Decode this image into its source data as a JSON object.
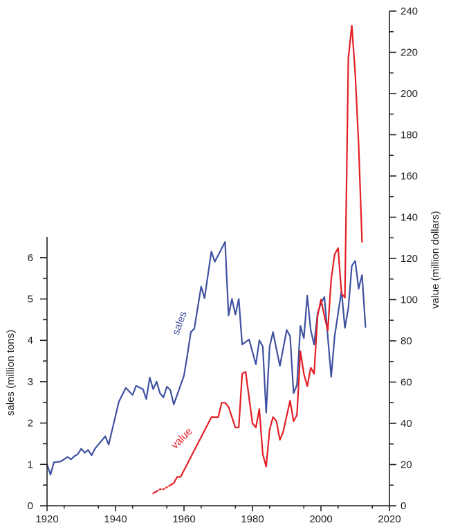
{
  "chart_data": {
    "type": "line",
    "x_axis": {
      "label": "",
      "range": [
        1920,
        2020
      ],
      "ticks": [
        1920,
        1940,
        1960,
        1980,
        2000,
        2020
      ]
    },
    "y_left": {
      "label": "sales (million tons)",
      "range": [
        0,
        6.5
      ],
      "ticks": [
        0,
        1,
        2,
        3,
        4,
        5,
        6
      ]
    },
    "y_right": {
      "label": "value (million dollars)",
      "range": [
        0,
        240
      ],
      "ticks": [
        0,
        20,
        40,
        60,
        80,
        100,
        120,
        140,
        160,
        180,
        200,
        220,
        240
      ]
    },
    "grid": false,
    "series": [
      {
        "name": "sales",
        "axis": "left",
        "color": "#3f51a0",
        "points": [
          [
            1920,
            1.0
          ],
          [
            1921,
            0.75
          ],
          [
            1922,
            1.05
          ],
          [
            1924,
            1.07
          ],
          [
            1926,
            1.18
          ],
          [
            1927,
            1.12
          ],
          [
            1928,
            1.2
          ],
          [
            1929,
            1.25
          ],
          [
            1930,
            1.38
          ],
          [
            1931,
            1.28
          ],
          [
            1932,
            1.35
          ],
          [
            1933,
            1.22
          ],
          [
            1934,
            1.38
          ],
          [
            1937,
            1.68
          ],
          [
            1938,
            1.48
          ],
          [
            1941,
            2.52
          ],
          [
            1943,
            2.85
          ],
          [
            1945,
            2.68
          ],
          [
            1946,
            2.9
          ],
          [
            1948,
            2.82
          ],
          [
            1949,
            2.58
          ],
          [
            1950,
            3.1
          ],
          [
            1951,
            2.82
          ],
          [
            1952,
            3.0
          ],
          [
            1953,
            2.72
          ],
          [
            1954,
            2.62
          ],
          [
            1955,
            2.88
          ],
          [
            1956,
            2.8
          ],
          [
            1957,
            2.45
          ],
          [
            1960,
            3.15
          ],
          [
            1961,
            3.65
          ],
          [
            1962,
            4.2
          ],
          [
            1963,
            4.28
          ],
          [
            1965,
            5.3
          ],
          [
            1966,
            5.02
          ],
          [
            1968,
            6.15
          ],
          [
            1969,
            5.9
          ],
          [
            1972,
            6.38
          ],
          [
            1973,
            4.6
          ],
          [
            1974,
            5.0
          ],
          [
            1975,
            4.62
          ],
          [
            1976,
            5.0
          ],
          [
            1977,
            3.9
          ],
          [
            1979,
            4.02
          ],
          [
            1981,
            3.42
          ],
          [
            1982,
            4.0
          ],
          [
            1983,
            3.85
          ],
          [
            1984,
            2.25
          ],
          [
            1985,
            3.85
          ],
          [
            1986,
            4.2
          ],
          [
            1988,
            3.38
          ],
          [
            1990,
            4.25
          ],
          [
            1991,
            4.1
          ],
          [
            1992,
            2.72
          ],
          [
            1993,
            2.92
          ],
          [
            1994,
            4.35
          ],
          [
            1995,
            4.05
          ],
          [
            1996,
            5.08
          ],
          [
            1997,
            4.25
          ],
          [
            1998,
            3.9
          ],
          [
            1999,
            4.65
          ],
          [
            2000,
            4.9
          ],
          [
            2001,
            5.05
          ],
          [
            2003,
            3.12
          ],
          [
            2004,
            4.1
          ],
          [
            2006,
            5.2
          ],
          [
            2007,
            4.3
          ],
          [
            2008,
            4.78
          ],
          [
            2009,
            5.8
          ],
          [
            2010,
            5.92
          ],
          [
            2011,
            5.25
          ],
          [
            2012,
            5.58
          ],
          [
            2013,
            4.32
          ]
        ]
      },
      {
        "name": "value",
        "axis": "right",
        "color": "#e31e24",
        "dotted_points": [
          [
            1952,
            7
          ],
          [
            1953,
            8
          ],
          [
            1954,
            8
          ],
          [
            1955,
            9
          ],
          [
            1956,
            10
          ]
        ],
        "points": [
          [
            1951,
            6
          ],
          [
            1952,
            7
          ],
          [
            1953,
            8
          ],
          [
            1957,
            11
          ],
          [
            1958,
            14
          ],
          [
            1959,
            14
          ],
          [
            1968,
            43
          ],
          [
            1970,
            43
          ],
          [
            1971,
            50
          ],
          [
            1972,
            50
          ],
          [
            1973,
            48
          ],
          [
            1975,
            38
          ],
          [
            1976,
            38
          ],
          [
            1977,
            64
          ],
          [
            1978,
            65
          ],
          [
            1980,
            40
          ],
          [
            1981,
            38
          ],
          [
            1982,
            47
          ],
          [
            1983,
            25
          ],
          [
            1984,
            19
          ],
          [
            1985,
            37
          ],
          [
            1986,
            43
          ],
          [
            1987,
            41
          ],
          [
            1988,
            32
          ],
          [
            1989,
            36
          ],
          [
            1991,
            51
          ],
          [
            1992,
            41
          ],
          [
            1993,
            44
          ],
          [
            1994,
            75
          ],
          [
            1995,
            64
          ],
          [
            1996,
            58
          ],
          [
            1997,
            67
          ],
          [
            1998,
            64
          ],
          [
            1999,
            92
          ],
          [
            2000,
            100
          ],
          [
            2001,
            92
          ],
          [
            2002,
            85
          ],
          [
            2003,
            110
          ],
          [
            2004,
            122
          ],
          [
            2005,
            125
          ],
          [
            2006,
            103
          ],
          [
            2007,
            101
          ],
          [
            2008,
            217
          ],
          [
            2009,
            233
          ],
          [
            2010,
            210
          ],
          [
            2011,
            175
          ],
          [
            2012,
            128
          ]
        ]
      }
    ]
  }
}
